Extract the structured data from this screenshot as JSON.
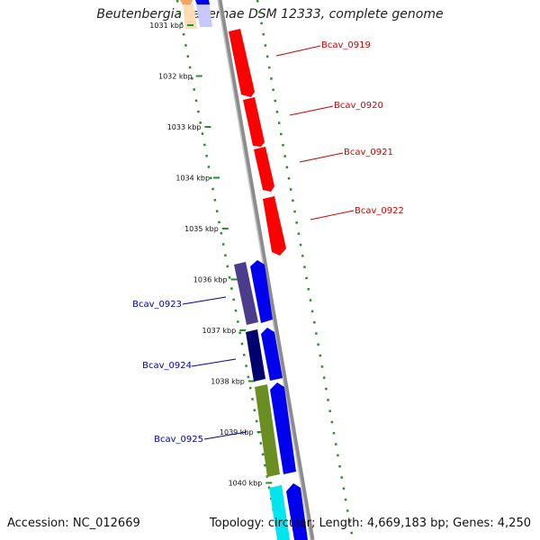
{
  "title": "Beutenbergia cavernae DSM 12333, complete genome",
  "footer": {
    "accession": "Accession: NC_012669",
    "topology": "Topology: circular; Length: 4,669,183 bp; Genes: 4,250"
  },
  "colors": {
    "backbone": "#8c8c8c",
    "gc_dots": "#2e8b2e",
    "forward_label": "#cc0000",
    "reverse_label": "#0000aa"
  },
  "scale_labels": [
    "1031 kbp",
    "1032 kbp",
    "1033 kbp",
    "1034 kbp",
    "1035 kbp",
    "1036 kbp",
    "1037 kbp",
    "1038 kbp",
    "1039 kbp",
    "1040 kbp"
  ],
  "genes": [
    {
      "label": "Bcav_0919",
      "strand": "forward",
      "color": "#ff0000"
    },
    {
      "label": "Bcav_0920",
      "strand": "forward",
      "color": "#ff0000"
    },
    {
      "label": "Bcav_0921",
      "strand": "forward",
      "color": "#ff0000"
    },
    {
      "label": "Bcav_0922",
      "strand": "forward",
      "color": "#ff0000"
    },
    {
      "label": "Bcav_0923",
      "strand": "reverse",
      "color": "#4b3c8c"
    },
    {
      "label": "Bcav_0924",
      "strand": "reverse",
      "color": "#00006e"
    },
    {
      "label": "Bcav_0925",
      "strand": "reverse",
      "color": "#6b8e23"
    }
  ]
}
